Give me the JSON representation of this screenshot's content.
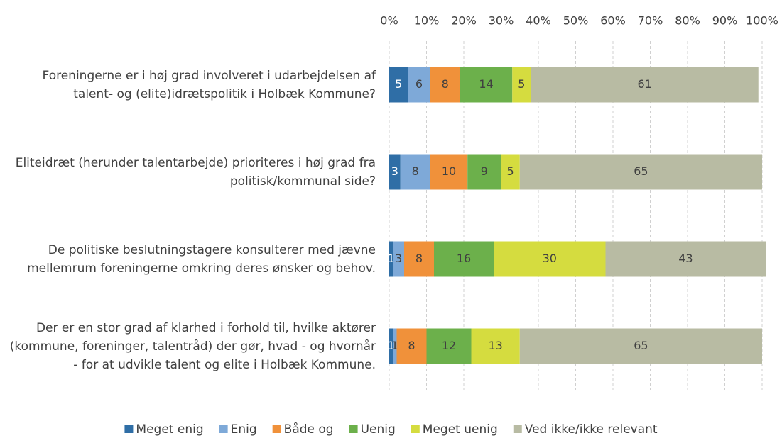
{
  "chart_data": {
    "type": "stacked-bar-horizontal",
    "categories": [
      "Foreningerne er i høj grad involveret i udarbejdelsen af talent- og (elite)idrætspolitik i Holbæk Kommune?",
      "Eliteidræt (herunder talentarbejde) prioriteres i høj grad fra politisk/kommunal side?",
      "De politiske beslutningstagere konsulterer med jævne mellemrum foreningerne omkring deres ønsker og behov.",
      "Der er en stor grad af klarhed i forhold til, hvilke aktører (kommune, foreninger, talentråd) der gør, hvad - og hvornår - for at udvikle talent og elite i Holbæk Kommune."
    ],
    "series": [
      {
        "name": "Meget enig",
        "color": "#2f6ea6",
        "values": [
          5,
          3,
          1,
          1
        ]
      },
      {
        "name": "Enig",
        "color": "#7ea9d8",
        "values": [
          6,
          8,
          3,
          1
        ]
      },
      {
        "name": "Både og",
        "color": "#f0913a",
        "values": [
          8,
          10,
          8,
          8
        ]
      },
      {
        "name": "Uenig",
        "color": "#6cb04b",
        "values": [
          14,
          9,
          16,
          12
        ]
      },
      {
        "name": "Meget uenig",
        "color": "#d5dc3f",
        "values": [
          5,
          5,
          30,
          13
        ]
      },
      {
        "name": "Ved ikke/ikke relevant",
        "color": "#b8bba3",
        "values": [
          61,
          65,
          43,
          65
        ]
      }
    ],
    "xlim": [
      0,
      100
    ],
    "xticks": [
      {
        "value": 0,
        "label": "0%"
      },
      {
        "value": 10,
        "label": "10%"
      },
      {
        "value": 20,
        "label": "20%"
      },
      {
        "value": 30,
        "label": "30%"
      },
      {
        "value": 40,
        "label": "40%"
      },
      {
        "value": 50,
        "label": "50%"
      },
      {
        "value": 60,
        "label": "60%"
      },
      {
        "value": 70,
        "label": "70%"
      },
      {
        "value": 80,
        "label": "80%"
      },
      {
        "value": 90,
        "label": "90%"
      },
      {
        "value": 100,
        "label": "100%"
      }
    ],
    "grid": true,
    "legend": "bottom"
  }
}
